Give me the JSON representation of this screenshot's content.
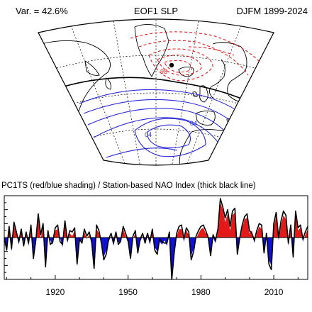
{
  "header": {
    "variance": "Var. = 42.6%",
    "title": "EOF1 SLP",
    "period": "DJFM 1899-2024"
  },
  "map": {
    "contour_labels": [
      {
        "text": "98",
        "sign": "negative"
      },
      {
        "text": "04",
        "sign": "positive"
      },
      {
        "text": "04",
        "sign": "positive"
      }
    ],
    "colors": {
      "positive": "#2a2ad8",
      "negative": "#e02020",
      "coast": "#000000",
      "grid": "#000000"
    }
  },
  "timeseries": {
    "title": "PC1TS (red/blue shading) / Station-based NAO Index (thick black line)"
  },
  "chart_data": {
    "type": "area",
    "title": "PC1TS (red/blue shading) / Station-based NAO Index (thick black line)",
    "x_tick_labels": [
      "1920",
      "1950",
      "1980",
      "2010"
    ],
    "x_ticks": [
      1920,
      1950,
      1980,
      2010
    ],
    "xlim": [
      1899,
      2024
    ],
    "ylim": [
      -3,
      3
    ],
    "grid": false,
    "colors": {
      "positive": "#e21a1a",
      "negative": "#1010d8",
      "line": "#000000"
    },
    "series": [
      {
        "type": "area",
        "values": [
          -0.2,
          -0.8,
          0.6,
          -1.0,
          0.9,
          0.3,
          -0.5,
          0.4,
          -0.3,
          0.2,
          -0.6,
          0.5,
          -1.2,
          -0.4,
          1.4,
          -0.1,
          0.8,
          -1.9,
          0.3,
          -0.2,
          -0.5,
          0.5,
          0.6,
          0.0,
          -0.7,
          0.9,
          -0.4,
          0.3,
          0.1,
          0.5,
          -1.6,
          -0.3,
          -0.2,
          0.4,
          -0.1,
          0.2,
          -0.5,
          -1.9,
          0.6,
          0.3,
          -0.2,
          -1.4,
          -0.9,
          -0.3,
          0.1,
          -0.6,
          0.2,
          -0.3,
          -0.4,
          0.6,
          0.1,
          -0.4,
          -1.2,
          -0.1,
          0.3,
          -0.9,
          -0.3,
          0.1,
          -0.2,
          0.1,
          -0.5,
          0.4,
          -0.7,
          -1.0,
          -0.3,
          -0.5,
          -0.2,
          -0.6,
          0.2,
          -2.6,
          -0.9,
          0.1,
          0.6,
          0.6,
          -0.3,
          0.5,
          0.2,
          -1.3,
          -0.8,
          -0.1,
          0.3,
          0.6,
          0.7,
          0.3,
          0.2,
          -1.1,
          0.0,
          -0.4,
          0.4,
          2.5,
          2.0,
          1.1,
          1.7,
          0.5,
          1.6,
          1.8,
          -0.9,
          -0.2,
          0.7,
          1.3,
          1.4,
          0.3,
          0.5,
          -0.4,
          0.3,
          0.8,
          0.6,
          -0.9,
          0.1,
          -1.6,
          -2.0,
          0.8,
          1.5,
          -0.2,
          0.9,
          1.6,
          1.3,
          -0.6,
          0.7,
          -1.2,
          1.6,
          0.5,
          0.7,
          -0.3,
          0.2,
          0.6
        ]
      },
      {
        "type": "line",
        "values": [
          0.0,
          -0.9,
          0.8,
          -0.8,
          1.1,
          0.4,
          -0.3,
          0.6,
          -0.6,
          0.4,
          -0.4,
          0.9,
          -1.5,
          -0.2,
          1.7,
          0.2,
          1.0,
          -2.1,
          0.5,
          -0.5,
          -0.3,
          0.7,
          0.9,
          -0.3,
          -0.5,
          1.2,
          -0.2,
          0.5,
          0.4,
          0.7,
          -1.9,
          -0.1,
          -0.4,
          0.6,
          0.1,
          0.4,
          -0.3,
          -2.2,
          0.9,
          0.5,
          -0.4,
          -1.6,
          -1.2,
          -0.1,
          0.3,
          -0.4,
          0.4,
          -0.5,
          -0.2,
          0.8,
          0.3,
          -0.2,
          -1.5,
          0.1,
          0.5,
          -1.1,
          -0.1,
          0.3,
          -0.4,
          0.3,
          -0.3,
          0.6,
          -0.9,
          -1.2,
          -0.1,
          -0.3,
          -0.4,
          -0.4,
          0.4,
          -3.0,
          -1.1,
          0.3,
          0.8,
          0.9,
          -0.1,
          0.7,
          0.4,
          -1.6,
          -1.0,
          0.1,
          0.5,
          0.8,
          0.9,
          0.5,
          0.0,
          -1.3,
          0.2,
          -0.2,
          0.6,
          2.8,
          2.2,
          1.4,
          2.0,
          0.8,
          1.9,
          2.1,
          -1.2,
          0.0,
          0.9,
          1.5,
          1.7,
          0.5,
          0.3,
          -0.2,
          0.5,
          1.0,
          0.9,
          -1.1,
          0.3,
          -1.9,
          -2.3,
          1.0,
          1.8,
          0.0,
          1.2,
          1.9,
          1.6,
          -0.4,
          0.9,
          -1.4,
          1.9,
          0.7,
          0.9,
          -0.1,
          0.4,
          0.8
        ]
      }
    ]
  }
}
